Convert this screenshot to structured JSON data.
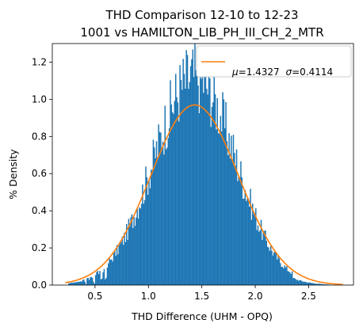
{
  "chart_data": {
    "type": "bar",
    "title_line1": "THD Comparison 12-10 to 12-23",
    "title_line2": "1001 vs HAMILTON_LIB_PH_III_CH_2_MTR",
    "xlabel": "THD Difference  (UHM - OPQ)",
    "ylabel": "% Density",
    "xlim": [
      0.1,
      2.92
    ],
    "ylim": [
      0,
      1.3
    ],
    "xticks": [
      {
        "value": 0.5,
        "label": "0.5"
      },
      {
        "value": 1.0,
        "label": "1.0"
      },
      {
        "value": 1.5,
        "label": "1.5"
      },
      {
        "value": 2.0,
        "label": "2.0"
      },
      {
        "value": 2.5,
        "label": "2.5"
      }
    ],
    "yticks": [
      {
        "value": 0.0,
        "label": "0.0"
      },
      {
        "value": 0.2,
        "label": "0.2"
      },
      {
        "value": 0.4,
        "label": "0.4"
      },
      {
        "value": 0.6,
        "label": "0.6"
      },
      {
        "value": 0.8,
        "label": "0.8"
      },
      {
        "value": 1.0,
        "label": "1.0"
      },
      {
        "value": 1.2,
        "label": "1.2"
      }
    ],
    "histogram": {
      "color": "#1f77b4",
      "bin_range": [
        0.25,
        2.7
      ],
      "bin_count": 245,
      "mean": 1.4327,
      "std": 0.4114,
      "peak_density": 1.22
    },
    "fit_curve": {
      "color": "#ff7f0e",
      "mu": 1.4327,
      "sigma": 0.4114,
      "x_range": [
        0.22,
        2.82
      ]
    },
    "legend": {
      "placement": "top-right",
      "mu_symbol": "μ",
      "mu_value": "=1.4327",
      "sigma_symbol": "σ",
      "sigma_value": "=0.4114"
    }
  }
}
